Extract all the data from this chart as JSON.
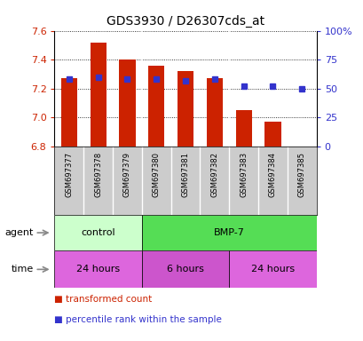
{
  "title": "GDS3930 / D26307cds_at",
  "samples": [
    "GSM697377",
    "GSM697378",
    "GSM697379",
    "GSM697380",
    "GSM697381",
    "GSM697382",
    "GSM697383",
    "GSM697384",
    "GSM697385"
  ],
  "bar_values": [
    7.27,
    7.52,
    7.4,
    7.36,
    7.32,
    7.27,
    7.05,
    6.97,
    6.8
  ],
  "percentile_values": [
    58,
    60,
    58,
    58,
    57,
    58,
    52,
    52,
    50
  ],
  "ylim_left": [
    6.8,
    7.6
  ],
  "ylim_right": [
    0,
    100
  ],
  "yticks_left": [
    6.8,
    7.0,
    7.2,
    7.4,
    7.6
  ],
  "yticks_right": [
    0,
    25,
    50,
    75,
    100
  ],
  "ytick_labels_right": [
    "0",
    "25",
    "50",
    "75",
    "100%"
  ],
  "bar_color": "#cc2200",
  "dot_color": "#3333cc",
  "agent_groups": [
    {
      "label": "control",
      "span": [
        0,
        3
      ],
      "color": "#ccffcc"
    },
    {
      "label": "BMP-7",
      "span": [
        3,
        9
      ],
      "color": "#55dd55"
    }
  ],
  "time_groups": [
    {
      "label": "24 hours",
      "span": [
        0,
        3
      ],
      "color": "#dd66dd"
    },
    {
      "label": "6 hours",
      "span": [
        3,
        6
      ],
      "color": "#cc55cc"
    },
    {
      "label": "24 hours",
      "span": [
        6,
        9
      ],
      "color": "#dd66dd"
    }
  ],
  "legend_items": [
    {
      "label": "transformed count",
      "color": "#cc2200"
    },
    {
      "label": "percentile rank within the sample",
      "color": "#3333cc"
    }
  ],
  "bg_color": "#ffffff",
  "label_area_color": "#cccccc",
  "bar_width": 0.55
}
